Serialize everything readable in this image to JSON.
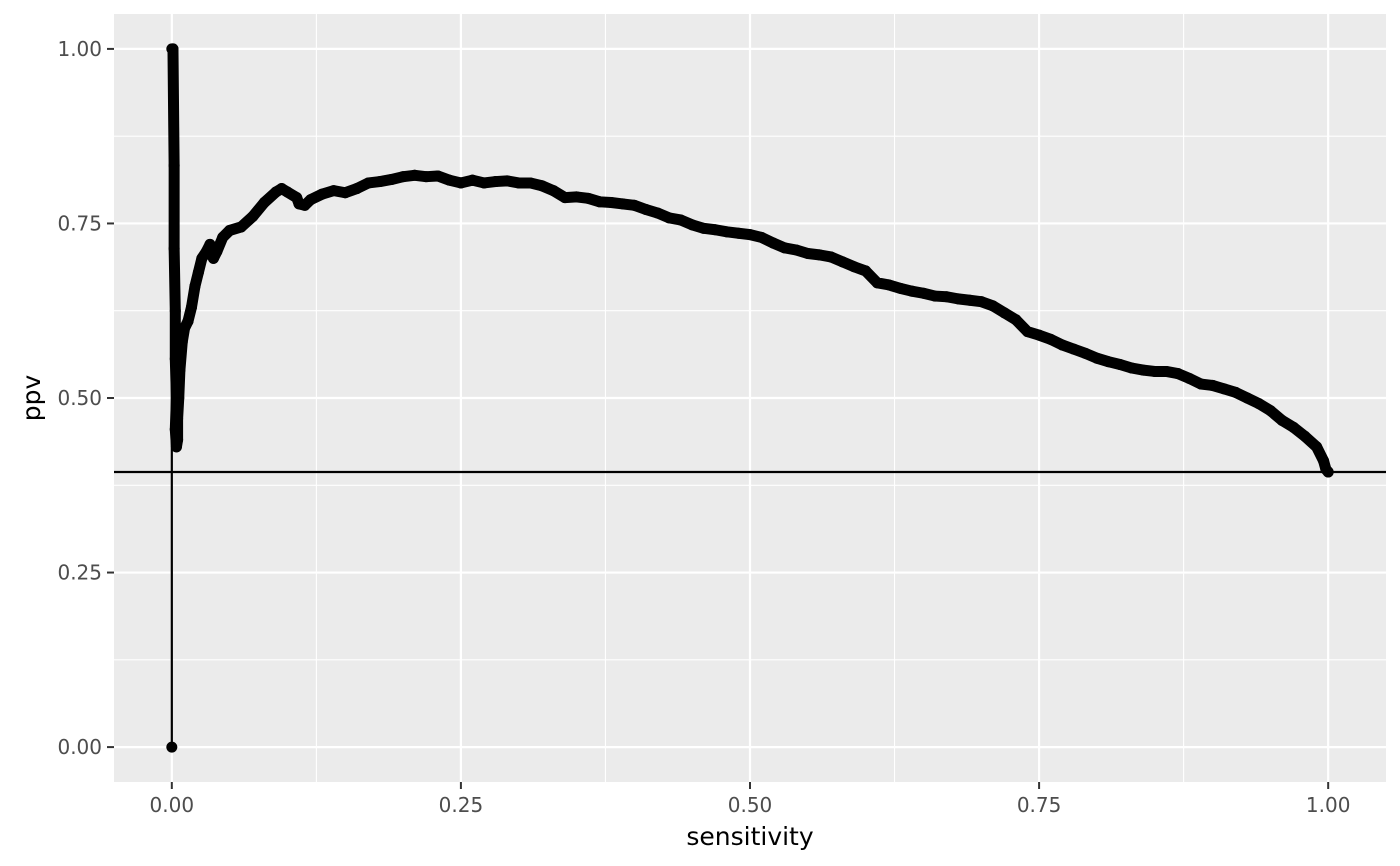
{
  "chart_data": {
    "type": "line",
    "xlabel": "sensitivity",
    "ylabel": "ppv",
    "xlim": [
      -0.05,
      1.05
    ],
    "ylim": [
      -0.05,
      1.05
    ],
    "x_ticks": [
      "0.00",
      "0.25",
      "0.50",
      "0.75",
      "1.00"
    ],
    "x_tick_values": [
      0,
      0.25,
      0.5,
      0.75,
      1
    ],
    "y_ticks": [
      "0.00",
      "0.25",
      "0.50",
      "0.75",
      "1.00"
    ],
    "y_tick_values": [
      0,
      0.25,
      0.5,
      0.75,
      1
    ],
    "grid": true,
    "panel_background": "#ebebeb",
    "line_color": "#000000",
    "hline": {
      "y": 0.394
    },
    "series": [
      {
        "points": [
          [
            0.0,
            0.0
          ],
          [
            0.0,
            1.0
          ],
          [
            0.001,
            1.0
          ],
          [
            0.002,
            0.833
          ],
          [
            0.002,
            0.714
          ],
          [
            0.003,
            0.625
          ],
          [
            0.003,
            0.556
          ],
          [
            0.004,
            0.5
          ],
          [
            0.003,
            0.455
          ],
          [
            0.004,
            0.43
          ],
          [
            0.005,
            0.44
          ],
          [
            0.005,
            0.47
          ],
          [
            0.006,
            0.5
          ],
          [
            0.007,
            0.54
          ],
          [
            0.009,
            0.58
          ],
          [
            0.011,
            0.6
          ],
          [
            0.014,
            0.61
          ],
          [
            0.017,
            0.63
          ],
          [
            0.02,
            0.66
          ],
          [
            0.023,
            0.68
          ],
          [
            0.026,
            0.7
          ],
          [
            0.03,
            0.71
          ],
          [
            0.033,
            0.72
          ],
          [
            0.036,
            0.7
          ],
          [
            0.039,
            0.71
          ],
          [
            0.044,
            0.73
          ],
          [
            0.05,
            0.74
          ],
          [
            0.06,
            0.745
          ],
          [
            0.07,
            0.76
          ],
          [
            0.08,
            0.78
          ],
          [
            0.09,
            0.795
          ],
          [
            0.095,
            0.8
          ],
          [
            0.1,
            0.795
          ],
          [
            0.108,
            0.787
          ],
          [
            0.11,
            0.778
          ],
          [
            0.115,
            0.776
          ],
          [
            0.12,
            0.784
          ],
          [
            0.13,
            0.792
          ],
          [
            0.14,
            0.797
          ],
          [
            0.15,
            0.794
          ],
          [
            0.16,
            0.8
          ],
          [
            0.17,
            0.808
          ],
          [
            0.18,
            0.81
          ],
          [
            0.19,
            0.813
          ],
          [
            0.2,
            0.817
          ],
          [
            0.21,
            0.819
          ],
          [
            0.22,
            0.817
          ],
          [
            0.23,
            0.818
          ],
          [
            0.24,
            0.812
          ],
          [
            0.25,
            0.808
          ],
          [
            0.26,
            0.812
          ],
          [
            0.27,
            0.808
          ],
          [
            0.28,
            0.81
          ],
          [
            0.29,
            0.811
          ],
          [
            0.3,
            0.808
          ],
          [
            0.31,
            0.808
          ],
          [
            0.32,
            0.804
          ],
          [
            0.33,
            0.797
          ],
          [
            0.34,
            0.787
          ],
          [
            0.35,
            0.788
          ],
          [
            0.36,
            0.786
          ],
          [
            0.37,
            0.781
          ],
          [
            0.38,
            0.78
          ],
          [
            0.39,
            0.778
          ],
          [
            0.4,
            0.776
          ],
          [
            0.41,
            0.77
          ],
          [
            0.42,
            0.765
          ],
          [
            0.43,
            0.758
          ],
          [
            0.44,
            0.755
          ],
          [
            0.45,
            0.748
          ],
          [
            0.46,
            0.743
          ],
          [
            0.47,
            0.741
          ],
          [
            0.48,
            0.738
          ],
          [
            0.49,
            0.736
          ],
          [
            0.5,
            0.734
          ],
          [
            0.51,
            0.73
          ],
          [
            0.52,
            0.722
          ],
          [
            0.53,
            0.715
          ],
          [
            0.54,
            0.712
          ],
          [
            0.55,
            0.707
          ],
          [
            0.56,
            0.705
          ],
          [
            0.57,
            0.702
          ],
          [
            0.58,
            0.695
          ],
          [
            0.59,
            0.688
          ],
          [
            0.6,
            0.682
          ],
          [
            0.61,
            0.665
          ],
          [
            0.62,
            0.662
          ],
          [
            0.63,
            0.657
          ],
          [
            0.64,
            0.653
          ],
          [
            0.65,
            0.65
          ],
          [
            0.66,
            0.646
          ],
          [
            0.67,
            0.645
          ],
          [
            0.68,
            0.642
          ],
          [
            0.69,
            0.64
          ],
          [
            0.7,
            0.638
          ],
          [
            0.71,
            0.632
          ],
          [
            0.72,
            0.622
          ],
          [
            0.73,
            0.612
          ],
          [
            0.74,
            0.595
          ],
          [
            0.75,
            0.59
          ],
          [
            0.76,
            0.584
          ],
          [
            0.77,
            0.576
          ],
          [
            0.78,
            0.57
          ],
          [
            0.79,
            0.564
          ],
          [
            0.8,
            0.557
          ],
          [
            0.81,
            0.552
          ],
          [
            0.82,
            0.548
          ],
          [
            0.83,
            0.543
          ],
          [
            0.84,
            0.54
          ],
          [
            0.85,
            0.538
          ],
          [
            0.86,
            0.538
          ],
          [
            0.87,
            0.535
          ],
          [
            0.88,
            0.528
          ],
          [
            0.89,
            0.52
          ],
          [
            0.9,
            0.518
          ],
          [
            0.91,
            0.513
          ],
          [
            0.92,
            0.508
          ],
          [
            0.93,
            0.5
          ],
          [
            0.94,
            0.492
          ],
          [
            0.95,
            0.482
          ],
          [
            0.96,
            0.468
          ],
          [
            0.97,
            0.458
          ],
          [
            0.98,
            0.445
          ],
          [
            0.99,
            0.43
          ],
          [
            0.996,
            0.41
          ],
          [
            0.998,
            0.398
          ],
          [
            1.0,
            0.394
          ]
        ]
      }
    ]
  }
}
